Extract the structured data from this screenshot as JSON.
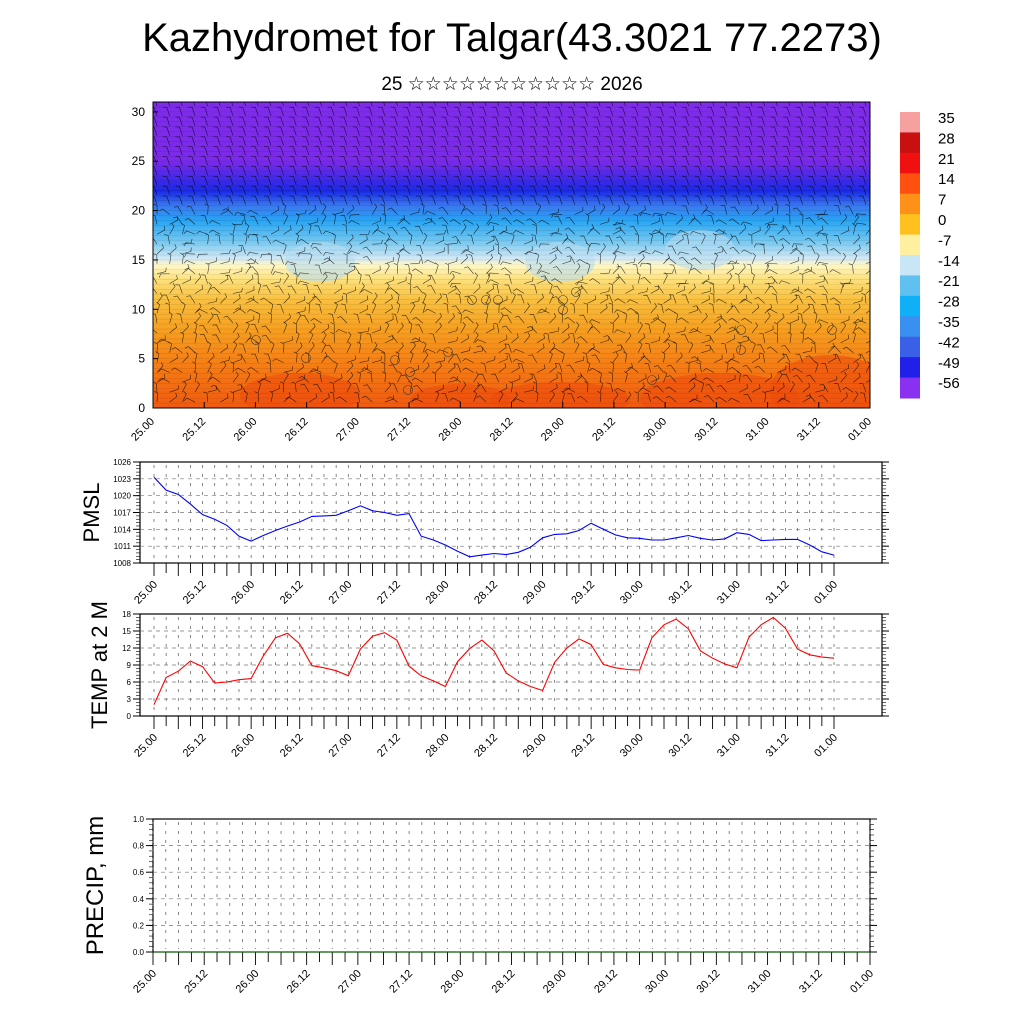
{
  "header": {
    "title": "Kazhydromet for Talgar(43.3021 77.2273)",
    "subtitle": "25 ☆☆☆☆☆☆☆☆☆☆☆ 2026"
  },
  "time_labels": [
    "25.00",
    "25.12",
    "26.00",
    "26.12",
    "27.00",
    "27.12",
    "28.00",
    "28.12",
    "29.00",
    "29.12",
    "30.00",
    "30.12",
    "31.00",
    "31.12",
    "01.00"
  ],
  "chart_data": [
    {
      "id": "cross-section",
      "type": "heatmap",
      "title": "",
      "xlabel": "",
      "ylabel": "",
      "y_ticks": [
        0,
        5,
        10,
        15,
        20,
        25,
        30
      ],
      "ylim": [
        0,
        31
      ],
      "description_layers": [
        "temperature shading",
        "wind barbs"
      ],
      "colorbar": {
        "labels": [
          "35",
          "28",
          "21",
          "14",
          "7",
          "0",
          "-7",
          "-14",
          "-21",
          "-28",
          "-35",
          "-42",
          "-49",
          "-56"
        ],
        "colors": [
          "#f6a0a0",
          "#c81010",
          "#f01010",
          "#ff5010",
          "#ff9018",
          "#ffc020",
          "#fff0a0",
          "#c8e6f5",
          "#60c0f0",
          "#10b0f8",
          "#3a90f0",
          "#3a60e8",
          "#2020e8",
          "#8a30f0"
        ]
      },
      "profile": [
        {
          "h": 0,
          "c": "#f05a10"
        },
        {
          "h": 4,
          "c": "#f57a14"
        },
        {
          "h": 8,
          "c": "#f7a020"
        },
        {
          "h": 11,
          "c": "#f9c040"
        },
        {
          "h": 13,
          "c": "#fde07a"
        },
        {
          "h": 14.5,
          "c": "#fff8c8"
        },
        {
          "h": 15.2,
          "c": "#cfe8f6"
        },
        {
          "h": 17,
          "c": "#70c6f0"
        },
        {
          "h": 19,
          "c": "#28a4f4"
        },
        {
          "h": 20.5,
          "c": "#3a78ee"
        },
        {
          "h": 22,
          "c": "#1a2ae6"
        },
        {
          "h": 23.5,
          "c": "#4a2ae8"
        },
        {
          "h": 25,
          "c": "#7a2ae8"
        },
        {
          "h": 31,
          "c": "#7e2cea"
        }
      ]
    },
    {
      "id": "pmsl",
      "type": "line",
      "ylabel": "PMSL",
      "ylim": [
        1008,
        1026
      ],
      "y_ticks": [
        1008,
        1011,
        1014,
        1017,
        1020,
        1023,
        1026
      ],
      "color": "#0000ff",
      "values": [
        1023.3,
        1021.0,
        1020.2,
        1018.5,
        1016.6,
        1015.8,
        1014.7,
        1012.8,
        1011.9,
        1012.9,
        1013.8,
        1014.6,
        1015.3,
        1016.3,
        1016.4,
        1016.5,
        1017.3,
        1018.2,
        1017.3,
        1017.0,
        1016.5,
        1016.8,
        1012.8,
        1012.1,
        1011.2,
        1010.1,
        1009.1,
        1009.4,
        1009.7,
        1009.5,
        1009.9,
        1010.8,
        1012.5,
        1013.1,
        1013.2,
        1013.8,
        1015.1,
        1014.0,
        1013.0,
        1012.5,
        1012.4,
        1012.1,
        1012.1,
        1012.5,
        1012.9,
        1012.4,
        1012.1,
        1012.3,
        1013.4,
        1013.1,
        1012.0,
        1012.1,
        1012.2,
        1012.2,
        1011.2,
        1010.0,
        1009.4
      ]
    },
    {
      "id": "temp2m",
      "type": "line",
      "ylabel": "TEMP at 2 M",
      "ylim": [
        0,
        18
      ],
      "y_ticks": [
        0,
        3,
        6,
        9,
        12,
        15,
        18
      ],
      "color": "#ff0000",
      "values": [
        2.0,
        6.8,
        7.9,
        9.7,
        8.7,
        5.8,
        6.0,
        6.4,
        6.6,
        10.6,
        13.8,
        14.6,
        12.7,
        8.9,
        8.5,
        8.0,
        7.1,
        11.8,
        14.1,
        14.7,
        13.4,
        8.8,
        7.1,
        6.2,
        5.2,
        9.6,
        11.9,
        13.4,
        11.5,
        7.6,
        6.2,
        5.2,
        4.5,
        9.5,
        12.0,
        13.6,
        12.6,
        9.1,
        8.5,
        8.2,
        8.1,
        13.8,
        16.1,
        17.1,
        15.4,
        11.5,
        10.2,
        9.2,
        8.5,
        13.9,
        16.1,
        17.4,
        15.5,
        11.8,
        10.8,
        10.4,
        10.2
      ]
    },
    {
      "id": "precip",
      "type": "line",
      "ylabel": "PRECIP, mm",
      "ylim": [
        0,
        1
      ],
      "y_ticks": [
        "0.0",
        "0.2",
        "0.4",
        "0.6",
        "0.8",
        "1.0"
      ],
      "color": "#006400",
      "values": [
        0,
        0,
        0,
        0,
        0,
        0,
        0,
        0,
        0,
        0,
        0,
        0,
        0,
        0,
        0,
        0,
        0,
        0,
        0,
        0,
        0,
        0,
        0,
        0,
        0,
        0,
        0,
        0,
        0,
        0,
        0,
        0,
        0,
        0,
        0,
        0,
        0,
        0,
        0,
        0,
        0,
        0,
        0,
        0,
        0,
        0,
        0,
        0,
        0,
        0,
        0,
        0,
        0,
        0,
        0,
        0,
        0
      ]
    }
  ]
}
